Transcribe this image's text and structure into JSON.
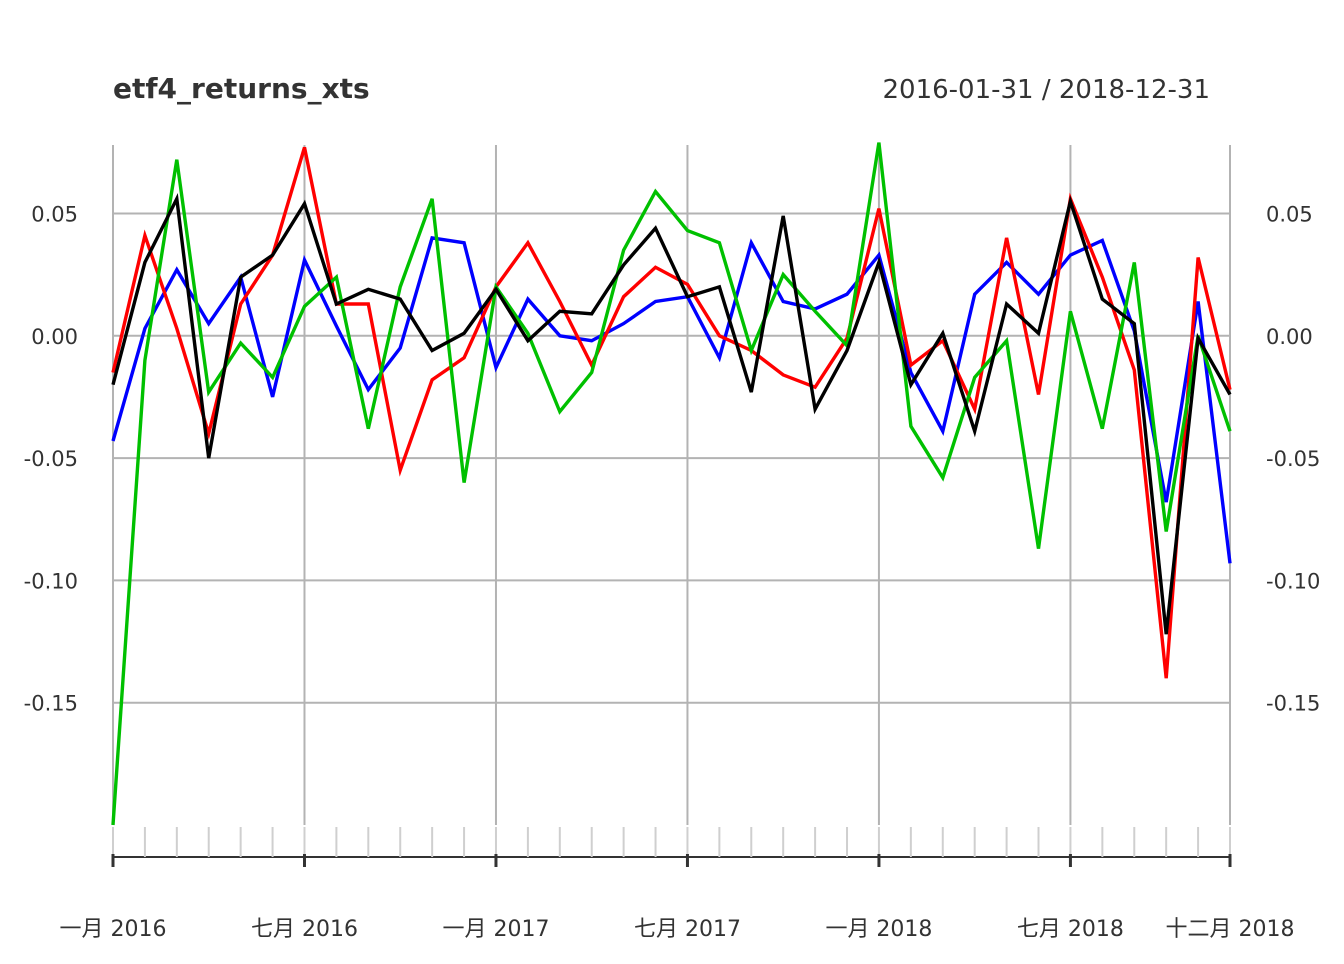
{
  "chart_data": {
    "type": "line",
    "title": "etf4_returns_xts",
    "subtitle": "2016-01-31 / 2018-12-31",
    "x": [
      "2016-01-31",
      "2016-02-29",
      "2016-03-31",
      "2016-04-30",
      "2016-05-31",
      "2016-06-30",
      "2016-07-31",
      "2016-08-31",
      "2016-09-30",
      "2016-10-31",
      "2016-11-30",
      "2016-12-31",
      "2017-01-31",
      "2017-02-28",
      "2017-03-31",
      "2017-04-30",
      "2017-05-31",
      "2017-06-30",
      "2017-07-31",
      "2017-08-31",
      "2017-09-30",
      "2017-10-31",
      "2017-11-30",
      "2017-12-31",
      "2018-01-31",
      "2018-02-28",
      "2018-03-31",
      "2018-04-30",
      "2018-05-31",
      "2018-06-30",
      "2018-07-31",
      "2018-08-31",
      "2018-09-30",
      "2018-10-31",
      "2018-11-30",
      "2018-12-31"
    ],
    "series": [
      {
        "color": "#0000ff",
        "values": [
          -0.043,
          0.003,
          0.027,
          0.005,
          0.024,
          -0.025,
          0.031,
          0.004,
          -0.022,
          -0.005,
          0.04,
          0.038,
          -0.013,
          0.015,
          0.0,
          -0.002,
          0.005,
          0.014,
          0.016,
          -0.009,
          0.038,
          0.014,
          0.011,
          0.017,
          0.033,
          -0.015,
          -0.039,
          0.017,
          0.03,
          0.017,
          0.033,
          0.039,
          0.002,
          -0.068,
          0.014,
          -0.093
        ]
      },
      {
        "color": "#ff0000",
        "values": [
          -0.015,
          0.041,
          0.003,
          -0.04,
          0.013,
          0.033,
          0.077,
          0.013,
          0.013,
          -0.055,
          -0.018,
          -0.009,
          0.02,
          0.038,
          0.014,
          -0.012,
          0.016,
          0.028,
          0.021,
          0.0,
          -0.006,
          -0.016,
          -0.021,
          -0.001,
          0.052,
          -0.012,
          -0.002,
          -0.03,
          0.04,
          -0.024,
          0.056,
          0.024,
          -0.014,
          -0.14,
          0.032,
          -0.022
        ]
      },
      {
        "color": "#00c000",
        "values": [
          -0.2,
          -0.01,
          0.072,
          -0.023,
          -0.003,
          -0.017,
          0.012,
          0.024,
          -0.038,
          0.02,
          0.056,
          -0.06,
          0.02,
          0.001,
          -0.031,
          -0.015,
          0.035,
          0.059,
          0.043,
          0.038,
          -0.006,
          0.025,
          0.01,
          -0.004,
          0.079,
          -0.037,
          -0.058,
          -0.017,
          -0.002,
          -0.087,
          0.01,
          -0.038,
          0.03,
          -0.08,
          0.0,
          -0.039
        ]
      },
      {
        "color": "#000000",
        "values": [
          -0.02,
          0.03,
          0.056,
          -0.05,
          0.024,
          0.033,
          0.054,
          0.013,
          0.019,
          0.015,
          -0.006,
          0.001,
          0.019,
          -0.002,
          0.01,
          0.009,
          0.029,
          0.044,
          0.016,
          0.02,
          -0.023,
          0.049,
          -0.03,
          -0.006,
          0.03,
          -0.02,
          0.001,
          -0.039,
          0.013,
          0.001,
          0.055,
          0.015,
          0.005,
          -0.122,
          -0.001,
          -0.024
        ]
      }
    ],
    "y_ticks": [
      "0.05",
      "0.00",
      "-0.05",
      "-0.10",
      "-0.15"
    ],
    "y_tick_values": [
      0.05,
      0.0,
      -0.05,
      -0.1,
      -0.15
    ],
    "x_ticks": [
      {
        "label": "一月 2016",
        "date": "2016-01-31"
      },
      {
        "label": "七月 2016",
        "date": "2016-07-31"
      },
      {
        "label": "一月 2017",
        "date": "2017-01-31"
      },
      {
        "label": "七月 2017",
        "date": "2017-07-31"
      },
      {
        "label": "一月 2018",
        "date": "2018-01-31"
      },
      {
        "label": "七月 2018",
        "date": "2018-07-31"
      },
      {
        "label": "十二月 2018",
        "date": "2018-12-31"
      }
    ],
    "ylim": [
      -0.2,
      0.078
    ],
    "grid": true,
    "legend": "none"
  }
}
